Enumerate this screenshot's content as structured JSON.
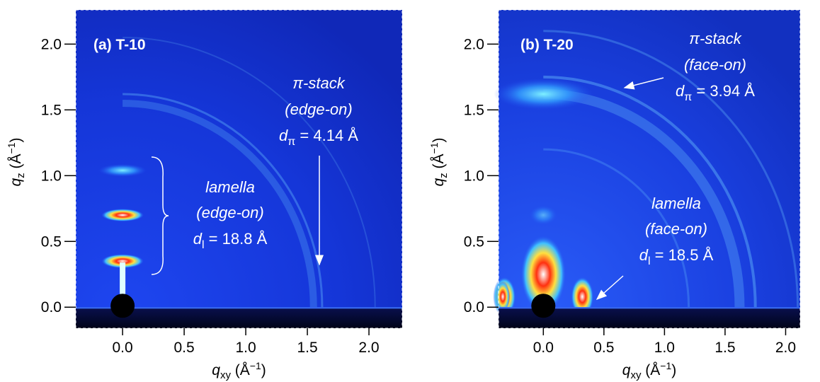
{
  "chart_data": [
    {
      "type": "image",
      "title": "(a) T-10",
      "xlabel": {
        "symbol": "q",
        "sub": "xy",
        "open": " (Å",
        "sup": "−1",
        "close": ")"
      },
      "ylabel": {
        "symbol": "q",
        "sub": "z",
        "open": " (Å",
        "sup": "−1",
        "close": ")"
      },
      "xlim": [
        -0.38,
        2.27
      ],
      "ylim": [
        -0.16,
        2.26
      ],
      "xticks": [
        {
          "value": 0,
          "label": "0.0"
        },
        0.5,
        {
          "value": 1,
          "label": "1.0"
        },
        1.5,
        {
          "value": 2,
          "label": "2.0"
        }
      ],
      "yticks": [
        {
          "value": 0,
          "label": "0.0"
        },
        0.5,
        {
          "value": 1,
          "label": "1.0"
        },
        1.5,
        {
          "value": 2,
          "label": "2.0"
        }
      ],
      "annotations": {
        "pi": {
          "name": "π-stack",
          "orientation": "(edge-on)",
          "spacing": {
            "symbol": "d",
            "sub": "π",
            "text": " = 4.14 Å"
          }
        },
        "lamella": {
          "name": "lamella",
          "orientation": "(edge-on)",
          "spacing": {
            "symbol": "d",
            "sub": "l",
            "text": " = 18.8 Å"
          }
        }
      }
    },
    {
      "type": "image",
      "title": "(b) T-20",
      "xlabel": {
        "symbol": "q",
        "sub": "xy",
        "open": " (Å",
        "sup": "−1",
        "close": ")"
      },
      "ylabel": {
        "symbol": "q",
        "sub": "z",
        "open": " (Å",
        "sup": "−1",
        "close": ")"
      },
      "xlim": [
        -0.37,
        2.12
      ],
      "ylim": [
        -0.16,
        2.26
      ],
      "xticks": [
        {
          "value": 0,
          "label": "0.0"
        },
        0.5,
        {
          "value": 1,
          "label": "1.0"
        },
        1.5,
        {
          "value": 2,
          "label": "2.0"
        }
      ],
      "yticks": [
        {
          "value": 0,
          "label": "0.0"
        },
        0.5,
        {
          "value": 1,
          "label": "1.0"
        },
        1.5,
        {
          "value": 2,
          "label": "2.0"
        }
      ],
      "annotations": {
        "pi": {
          "name": "π-stack",
          "orientation": "(face-on)",
          "spacing": {
            "symbol": "d",
            "sub": "π",
            "text": " = 3.94 Å"
          }
        },
        "lamella": {
          "name": "lamella",
          "orientation": "(face-on)",
          "spacing": {
            "symbol": "d",
            "sub": "l",
            "text": " = 18.5 Å"
          }
        }
      }
    }
  ]
}
